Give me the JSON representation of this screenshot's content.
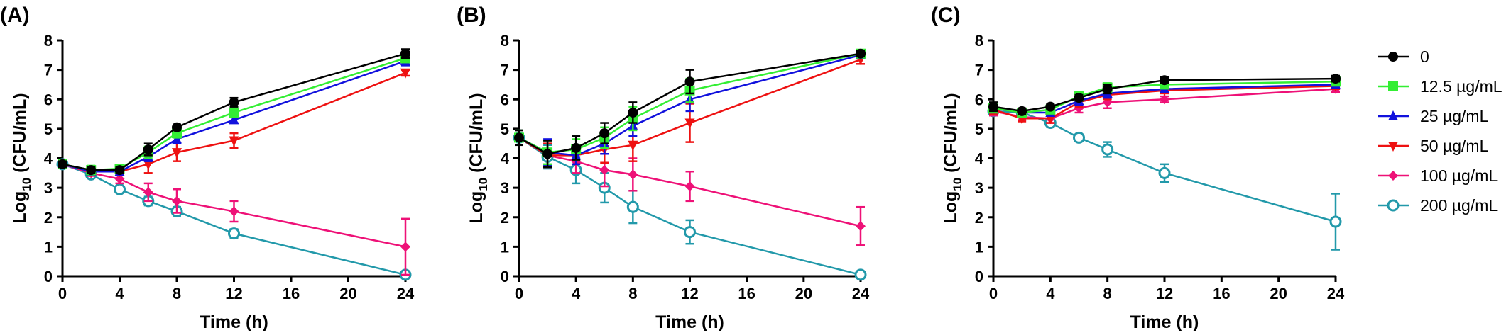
{
  "legend": {
    "items": [
      {
        "label": "0",
        "color": "#000000",
        "marker": "circle-filled"
      },
      {
        "label": "12.5 µg/mL",
        "color": "#33ee33",
        "marker": "square"
      },
      {
        "label": "25 µg/mL",
        "color": "#1111dd",
        "marker": "triangle-up"
      },
      {
        "label": "50 µg/mL",
        "color": "#ee1111",
        "marker": "triangle-down"
      },
      {
        "label": "100 µg/mL",
        "color": "#ee1177",
        "marker": "diamond"
      },
      {
        "label": "200 µg/mL",
        "color": "#2299aa",
        "marker": "circle-open"
      }
    ]
  },
  "chart_data": [
    {
      "type": "line",
      "panel_label": "(A)",
      "xlabel": "Time (h)",
      "ylabel_main": "Log",
      "ylabel_sub": "10",
      "ylabel_rest": " (CFU/mL)",
      "xlim": [
        0,
        24
      ],
      "ylim": [
        0,
        8
      ],
      "xticks": [
        0,
        4,
        8,
        12,
        16,
        20,
        24
      ],
      "yticks": [
        0,
        1,
        2,
        3,
        4,
        5,
        6,
        7,
        8
      ],
      "x": [
        0,
        2,
        4,
        6,
        8,
        12,
        24
      ],
      "grid": false,
      "series": [
        {
          "name": "0",
          "values": [
            3.8,
            3.6,
            3.6,
            4.3,
            5.05,
            5.9,
            7.55
          ],
          "errors": [
            0.1,
            0.1,
            0.1,
            0.2,
            0.1,
            0.15,
            0.15
          ]
        },
        {
          "name": "12.5 µg/mL",
          "values": [
            3.8,
            3.6,
            3.65,
            4.2,
            4.85,
            5.55,
            7.4
          ],
          "errors": [
            0.1,
            0.15,
            0.1,
            0.2,
            0.15,
            0.15,
            0.15
          ]
        },
        {
          "name": "25 µg/mL",
          "values": [
            3.8,
            3.55,
            3.55,
            4.05,
            4.65,
            5.3,
            7.3
          ],
          "errors": [
            0.1,
            0.1,
            0.1,
            0.15,
            0.15,
            0.1,
            0.15
          ]
        },
        {
          "name": "50 µg/mL",
          "values": [
            3.8,
            3.55,
            3.55,
            3.8,
            4.2,
            4.6,
            6.9
          ],
          "errors": [
            0.1,
            0.1,
            0.1,
            0.3,
            0.3,
            0.25,
            0.1
          ]
        },
        {
          "name": "100 µg/mL",
          "values": [
            3.8,
            3.5,
            3.3,
            2.85,
            2.55,
            2.2,
            1.0
          ],
          "errors": [
            0.1,
            0.1,
            0.15,
            0.3,
            0.4,
            0.35,
            0.95
          ]
        },
        {
          "name": "200 µg/mL",
          "values": [
            3.8,
            3.45,
            2.95,
            2.55,
            2.2,
            1.45,
            0.05
          ],
          "errors": [
            0.1,
            0.1,
            0.1,
            0.15,
            0.15,
            0.15,
            0.05
          ]
        }
      ]
    },
    {
      "type": "line",
      "panel_label": "(B)",
      "xlabel": "Time (h)",
      "ylabel_main": "Log",
      "ylabel_sub": "10",
      "ylabel_rest": " (CFU/mL)",
      "xlim": [
        0,
        24
      ],
      "ylim": [
        0,
        8
      ],
      "xticks": [
        0,
        4,
        8,
        12,
        16,
        20,
        24
      ],
      "yticks": [
        0,
        1,
        2,
        3,
        4,
        5,
        6,
        7,
        8
      ],
      "x": [
        0,
        2,
        4,
        6,
        8,
        12,
        24
      ],
      "grid": false,
      "series": [
        {
          "name": "0",
          "values": [
            4.7,
            4.15,
            4.35,
            4.85,
            5.55,
            6.6,
            7.55
          ],
          "errors": [
            0.25,
            0.45,
            0.4,
            0.35,
            0.35,
            0.4,
            0.1
          ]
        },
        {
          "name": "12.5 µg/mL",
          "values": [
            4.7,
            4.2,
            4.3,
            4.7,
            5.35,
            6.3,
            7.55
          ],
          "errors": [
            0.25,
            0.4,
            0.35,
            0.35,
            0.4,
            0.4,
            0.1
          ]
        },
        {
          "name": "25 µg/mL",
          "values": [
            4.7,
            4.2,
            4.1,
            4.5,
            5.1,
            6.0,
            7.5
          ],
          "errors": [
            0.25,
            0.45,
            0.3,
            0.35,
            0.35,
            0.4,
            0.1
          ]
        },
        {
          "name": "50 µg/mL",
          "values": [
            4.7,
            4.1,
            4.1,
            4.3,
            4.45,
            5.2,
            7.35
          ],
          "errors": [
            0.25,
            0.4,
            0.3,
            0.45,
            0.55,
            0.65,
            0.15
          ]
        },
        {
          "name": "100 µg/mL",
          "values": [
            4.7,
            4.1,
            3.9,
            3.6,
            3.45,
            3.05,
            1.7
          ],
          "errors": [
            0.25,
            0.4,
            0.4,
            0.55,
            0.55,
            0.5,
            0.65
          ]
        },
        {
          "name": "200 µg/mL",
          "values": [
            4.7,
            4.05,
            3.6,
            3.0,
            2.35,
            1.5,
            0.05
          ],
          "errors": [
            0.25,
            0.4,
            0.45,
            0.5,
            0.55,
            0.4,
            0.05
          ]
        }
      ]
    },
    {
      "type": "line",
      "panel_label": "(C)",
      "xlabel": "Time (h)",
      "ylabel_main": "Log",
      "ylabel_sub": "10",
      "ylabel_rest": " (CFU/mL)",
      "xlim": [
        0,
        24
      ],
      "ylim": [
        0,
        8
      ],
      "xticks": [
        0,
        4,
        8,
        12,
        16,
        20,
        24
      ],
      "yticks": [
        0,
        1,
        2,
        3,
        4,
        5,
        6,
        7,
        8
      ],
      "x": [
        0,
        2,
        4,
        6,
        8,
        12,
        24
      ],
      "grid": false,
      "series": [
        {
          "name": "0",
          "values": [
            5.75,
            5.6,
            5.75,
            6.05,
            6.35,
            6.65,
            6.7
          ],
          "errors": [
            0.15,
            0.1,
            0.1,
            0.1,
            0.15,
            0.1,
            0.1
          ]
        },
        {
          "name": "12.5 µg/mL",
          "values": [
            5.7,
            5.55,
            5.65,
            6.1,
            6.4,
            6.5,
            6.6
          ],
          "errors": [
            0.15,
            0.1,
            0.1,
            0.15,
            0.15,
            0.1,
            0.1
          ]
        },
        {
          "name": "25 µg/mL",
          "values": [
            5.7,
            5.55,
            5.55,
            5.95,
            6.2,
            6.35,
            6.5
          ],
          "errors": [
            0.15,
            0.1,
            0.1,
            0.15,
            0.15,
            0.1,
            0.1
          ]
        },
        {
          "name": "50 µg/mL",
          "values": [
            5.65,
            5.35,
            5.35,
            5.9,
            6.15,
            6.3,
            6.45
          ],
          "errors": [
            0.15,
            0.1,
            0.15,
            0.15,
            0.15,
            0.1,
            0.1
          ]
        },
        {
          "name": "100 µg/mL",
          "values": [
            5.6,
            5.4,
            5.35,
            5.7,
            5.9,
            6.0,
            6.35
          ],
          "errors": [
            0.15,
            0.1,
            0.15,
            0.15,
            0.2,
            0.1,
            0.1
          ]
        },
        {
          "name": "200 µg/mL",
          "values": [
            5.6,
            5.55,
            5.2,
            4.7,
            4.3,
            3.5,
            1.85
          ],
          "errors": [
            0.15,
            0.1,
            0.15,
            0.1,
            0.25,
            0.3,
            0.95
          ]
        }
      ]
    }
  ]
}
